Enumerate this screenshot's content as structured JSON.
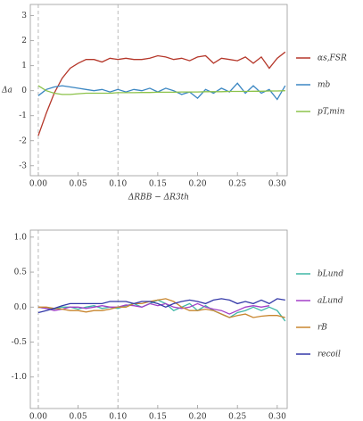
{
  "chart_data": [
    {
      "type": "line",
      "x_label": "ΔRBB − ΔR3th",
      "y_label": "Δa",
      "x": [
        0,
        0.01,
        0.02,
        0.03,
        0.04,
        0.05,
        0.06,
        0.07,
        0.08,
        0.09,
        0.1,
        0.11,
        0.12,
        0.13,
        0.14,
        0.15,
        0.16,
        0.17,
        0.18,
        0.19,
        0.2,
        0.21,
        0.22,
        0.23,
        0.24,
        0.25,
        0.26,
        0.27,
        0.28,
        0.29,
        0.3,
        0.31
      ],
      "series": [
        {
          "name": "αs,FSR",
          "color": "#b5372a",
          "values": [
            -1.8,
            -0.9,
            -0.1,
            0.5,
            0.9,
            1.1,
            1.25,
            1.25,
            1.15,
            1.3,
            1.25,
            1.3,
            1.25,
            1.25,
            1.3,
            1.4,
            1.35,
            1.25,
            1.3,
            1.2,
            1.35,
            1.4,
            1.1,
            1.3,
            1.25,
            1.2,
            1.35,
            1.1,
            1.35,
            0.9,
            1.3,
            1.55
          ]
        },
        {
          "name": "mb",
          "color": "#3a86c2",
          "values": [
            -0.2,
            0.05,
            0.15,
            0.2,
            0.15,
            0.1,
            0.05,
            0.0,
            0.05,
            -0.05,
            0.05,
            -0.05,
            0.05,
            0.0,
            0.1,
            -0.05,
            0.1,
            0.0,
            -0.15,
            -0.05,
            -0.3,
            0.05,
            -0.1,
            0.1,
            -0.05,
            0.3,
            -0.1,
            0.2,
            -0.1,
            0.05,
            -0.35,
            0.2
          ]
        },
        {
          "name": "pT,min",
          "color": "#8cc24a",
          "values": [
            0.2,
            0.0,
            -0.1,
            -0.15,
            -0.15,
            -0.12,
            -0.1,
            -0.1,
            -0.1,
            -0.1,
            -0.08,
            -0.08,
            -0.08,
            -0.07,
            -0.07,
            -0.06,
            -0.06,
            -0.06,
            -0.05,
            -0.05,
            -0.05,
            -0.04,
            -0.04,
            -0.04,
            -0.03,
            -0.03,
            -0.03,
            -0.02,
            -0.02,
            -0.01,
            -0.01,
            0.0
          ]
        }
      ],
      "xlim": [
        -0.01,
        0.3125
      ],
      "xticks": [
        {
          "value": 0,
          "label": "0.00"
        },
        0.05,
        {
          "value": 0.1,
          "label": "0.10"
        },
        0.15,
        {
          "value": 0.2,
          "label": "0.20"
        },
        0.25,
        {
          "value": 0.3,
          "label": "0.30"
        }
      ],
      "ylim": [
        -3.4,
        3.45
      ],
      "yticks": [
        3,
        2,
        1,
        0,
        -1,
        -2,
        -3
      ],
      "vlines": [
        0,
        0.1
      ],
      "legend": "right"
    },
    {
      "type": "line",
      "x_label": "ΔRBB − ΔR3th",
      "x": [
        0,
        0.01,
        0.02,
        0.03,
        0.04,
        0.05,
        0.06,
        0.07,
        0.08,
        0.09,
        0.1,
        0.11,
        0.12,
        0.13,
        0.14,
        0.15,
        0.16,
        0.17,
        0.18,
        0.19,
        0.2,
        0.21,
        0.22,
        0.23,
        0.24,
        0.25,
        0.26,
        0.27,
        0.28,
        0.29,
        0.3,
        0.31
      ],
      "series": [
        {
          "name": "bLund",
          "color": "#3fb7a6",
          "values": [
            0,
            -0.02,
            -0.03,
            0.0,
            0.0,
            -0.03,
            0.0,
            0.02,
            -0.02,
            0.0,
            -0.02,
            0.02,
            0.05,
            0.0,
            0.05,
            0.1,
            0.05,
            -0.05,
            0.0,
            0.05,
            -0.05,
            0.02,
            -0.05,
            -0.1,
            -0.15,
            -0.08,
            -0.05,
            0.0,
            -0.05,
            0.0,
            -0.05,
            -0.2
          ]
        },
        {
          "name": "aLund",
          "color": "#a23fc8",
          "values": [
            0.0,
            -0.02,
            -0.05,
            -0.03,
            0.0,
            0.0,
            -0.02,
            0.0,
            0.02,
            0.0,
            0.0,
            0.03,
            0.02,
            0.0,
            0.05,
            0.02,
            0.05,
            0.0,
            -0.02,
            0.0,
            0.05,
            0.0,
            -0.03,
            -0.05,
            -0.1,
            -0.05,
            0.0,
            0.02,
            0.0,
            0.02,
            null,
            null
          ]
        },
        {
          "name": "rB",
          "color": "#c8862f",
          "values": [
            0.0,
            0.0,
            -0.02,
            -0.03,
            -0.05,
            -0.05,
            -0.07,
            -0.05,
            -0.05,
            -0.03,
            0.0,
            0.0,
            0.05,
            0.05,
            0.08,
            0.1,
            0.12,
            0.08,
            0.0,
            -0.05,
            -0.05,
            -0.03,
            -0.05,
            -0.1,
            -0.15,
            -0.12,
            -0.1,
            -0.15,
            -0.13,
            -0.12,
            -0.12,
            -0.15
          ]
        },
        {
          "name": "recoil",
          "color": "#3338a8",
          "values": [
            -0.08,
            -0.05,
            -0.02,
            0.02,
            0.05,
            0.05,
            0.05,
            0.05,
            0.05,
            0.08,
            0.08,
            0.08,
            0.05,
            0.08,
            0.08,
            0.05,
            0.0,
            0.05,
            0.08,
            0.1,
            0.08,
            0.05,
            0.1,
            0.12,
            0.1,
            0.05,
            0.08,
            0.05,
            0.1,
            0.05,
            0.12,
            0.1
          ]
        }
      ],
      "xlim": [
        -0.01,
        0.3125
      ],
      "xticks": [
        {
          "value": 0,
          "label": "0.00"
        },
        0.05,
        {
          "value": 0.1,
          "label": "0.10"
        },
        0.15,
        {
          "value": 0.2,
          "label": "0.20"
        },
        0.25,
        {
          "value": 0.3,
          "label": "0.30"
        }
      ],
      "ylim": [
        -1.45,
        1.1
      ],
      "yticks": [
        {
          "value": 1,
          "label": "1.0"
        },
        0.5,
        {
          "value": 0,
          "label": "0.0"
        },
        -0.5,
        {
          "value": -1,
          "label": "-1.0"
        }
      ],
      "vlines": [
        0,
        0.1
      ],
      "legend": "right"
    }
  ]
}
